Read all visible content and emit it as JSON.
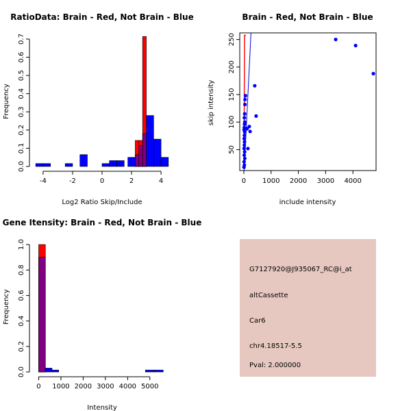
{
  "chart_data": [
    {
      "type": "bar",
      "subtype": "overlaid-histogram",
      "title": "RatioData: Brain - Red, Not Brain - Blue",
      "xlabel": "Log2 Ratio Skip/Include",
      "ylabel": "Frequency",
      "xlim": [
        -4.6,
        4.6
      ],
      "ylim": [
        0,
        0.7
      ],
      "xticks": [
        -4,
        -2,
        0,
        2,
        4
      ],
      "yticks": [
        0.0,
        0.1,
        0.2,
        0.3,
        0.4,
        0.5,
        0.6,
        0.7
      ],
      "overlap_color": "#800080",
      "series": [
        {
          "name": "Brain",
          "color": "#ff0000",
          "bins": [
            [
              2.25,
              2.5,
              0.143
            ],
            [
              2.5,
              2.75,
              0.143
            ],
            [
              2.75,
              3.0,
              0.714
            ]
          ]
        },
        {
          "name": "Not Brain",
          "color": "#0000ff",
          "bins": [
            [
              -4.5,
              -4.0,
              0.016
            ],
            [
              -4.0,
              -3.5,
              0.016
            ],
            [
              -2.5,
              -2.0,
              0.016
            ],
            [
              -1.5,
              -1.0,
              0.065
            ],
            [
              0.0,
              0.5,
              0.016
            ],
            [
              0.5,
              1.0,
              0.032
            ],
            [
              1.0,
              1.5,
              0.032
            ],
            [
              1.75,
              2.25,
              0.05
            ],
            [
              2.25,
              2.5,
              0.065
            ],
            [
              2.5,
              2.75,
              0.114
            ],
            [
              2.75,
              3.0,
              0.18
            ],
            [
              3.0,
              3.5,
              0.28
            ],
            [
              3.5,
              4.0,
              0.15
            ],
            [
              4.0,
              4.5,
              0.05
            ]
          ]
        }
      ]
    },
    {
      "type": "scatter",
      "title": "Brain - Red, Not Brain - Blue",
      "xlabel": "include intensity",
      "ylabel": "skip intensity",
      "xlim": [
        -150,
        4850
      ],
      "ylim": [
        12,
        262
      ],
      "xticks": [
        0,
        1000,
        2000,
        3000,
        4000
      ],
      "yticks": [
        50,
        100,
        150,
        200,
        250
      ],
      "diagonal_line": "y = x",
      "series": [
        {
          "name": "Not Brain",
          "color": "#0000ff",
          "points": [
            [
              3370,
              250
            ],
            [
              4100,
              239
            ],
            [
              4750,
              188
            ],
            [
              400,
              166
            ],
            [
              450,
              111
            ],
            [
              200,
              92
            ],
            [
              230,
              83
            ],
            [
              120,
              88
            ],
            [
              150,
              52
            ],
            [
              60,
              148
            ],
            [
              45,
              141
            ],
            [
              40,
              132
            ],
            [
              30,
              115
            ],
            [
              20,
              108
            ],
            [
              35,
              100
            ],
            [
              25,
              96
            ],
            [
              15,
              90
            ],
            [
              10,
              86
            ],
            [
              30,
              82
            ],
            [
              20,
              76
            ],
            [
              12,
              70
            ],
            [
              25,
              64
            ],
            [
              18,
              58
            ],
            [
              8,
              52
            ],
            [
              30,
              46
            ],
            [
              15,
              40
            ],
            [
              35,
              34
            ],
            [
              10,
              28
            ],
            [
              20,
              22
            ],
            [
              5,
              18
            ]
          ]
        },
        {
          "name": "Brain",
          "color": "#ff0000",
          "line_points": [
            [
              0,
              20
            ],
            [
              20,
              258
            ],
            [
              60,
              258
            ],
            [
              30,
              255
            ],
            [
              10,
              20
            ]
          ]
        }
      ]
    },
    {
      "type": "bar",
      "subtype": "overlaid-histogram",
      "title": "Gene Itensity: Brain - Red, Not Brain - Blue",
      "xlabel": "Intensity",
      "ylabel": "Frequency",
      "xlim": [
        -200,
        5900
      ],
      "ylim": [
        0,
        1.0
      ],
      "xticks": [
        0,
        1000,
        2000,
        3000,
        4000,
        5000
      ],
      "yticks": [
        0.0,
        0.2,
        0.4,
        0.6,
        0.8,
        1.0
      ],
      "overlap_color": "#800080",
      "series": [
        {
          "name": "Brain",
          "color": "#ff0000",
          "bins": [
            [
              0,
              300,
              1.0
            ]
          ]
        },
        {
          "name": "Not Brain",
          "color": "#0000ff",
          "bins": [
            [
              0,
              300,
              0.9
            ],
            [
              300,
              600,
              0.03
            ],
            [
              600,
              900,
              0.015
            ],
            [
              4800,
              5200,
              0.015
            ],
            [
              5200,
              5600,
              0.015
            ]
          ]
        }
      ]
    }
  ],
  "info_panel": {
    "background": "#e6c8c0",
    "probe_id": "G7127920@J935067_RC@i_at",
    "event_type": "altCassette",
    "gene": "Car6",
    "location": "chr4.18517-5.5",
    "pval": "Pval: 2.000000",
    "pval_color": "#cc0000"
  }
}
